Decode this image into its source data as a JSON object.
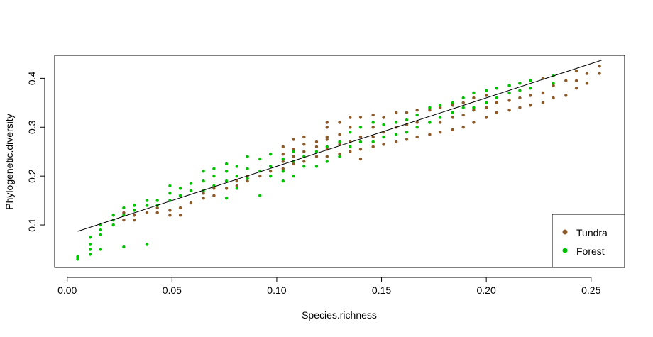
{
  "chart_data": {
    "type": "scatter",
    "title": "",
    "xlabel": "Species.richness",
    "ylabel": "Phylogenetic.diversity",
    "xlim": [
      -0.006,
      0.266
    ],
    "ylim": [
      0.013,
      0.447
    ],
    "xticks": [
      "0.00",
      "0.05",
      "0.10",
      "0.15",
      "0.20",
      "0.25"
    ],
    "xtick_values": [
      0.0,
      0.05,
      0.1,
      0.15,
      0.2,
      0.25
    ],
    "yticks": [
      "0.1",
      "0.2",
      "0.3",
      "0.4"
    ],
    "ytick_values": [
      0.1,
      0.2,
      0.3,
      0.4
    ],
    "grid": false,
    "legend_position": "bottom-right",
    "fit_line": {
      "x": [
        0.005,
        0.255
      ],
      "y": [
        0.087,
        0.437
      ],
      "color": "#000000"
    },
    "series": [
      {
        "name": "Tundra",
        "color": "#8B5A2B",
        "points": [
          [
            0.027,
            0.11
          ],
          [
            0.027,
            0.125
          ],
          [
            0.032,
            0.11
          ],
          [
            0.032,
            0.12
          ],
          [
            0.038,
            0.125
          ],
          [
            0.043,
            0.125
          ],
          [
            0.043,
            0.135
          ],
          [
            0.049,
            0.12
          ],
          [
            0.049,
            0.13
          ],
          [
            0.054,
            0.12
          ],
          [
            0.054,
            0.135
          ],
          [
            0.059,
            0.145
          ],
          [
            0.065,
            0.155
          ],
          [
            0.065,
            0.165
          ],
          [
            0.07,
            0.16
          ],
          [
            0.07,
            0.175
          ],
          [
            0.076,
            0.175
          ],
          [
            0.081,
            0.18
          ],
          [
            0.081,
            0.19
          ],
          [
            0.086,
            0.19
          ],
          [
            0.086,
            0.2
          ],
          [
            0.092,
            0.2
          ],
          [
            0.097,
            0.21
          ],
          [
            0.103,
            0.215
          ],
          [
            0.103,
            0.23
          ],
          [
            0.103,
            0.245
          ],
          [
            0.103,
            0.26
          ],
          [
            0.108,
            0.225
          ],
          [
            0.108,
            0.24
          ],
          [
            0.108,
            0.255
          ],
          [
            0.108,
            0.275
          ],
          [
            0.113,
            0.23
          ],
          [
            0.113,
            0.25
          ],
          [
            0.113,
            0.265
          ],
          [
            0.113,
            0.28
          ],
          [
            0.119,
            0.24
          ],
          [
            0.119,
            0.26
          ],
          [
            0.119,
            0.27
          ],
          [
            0.124,
            0.24
          ],
          [
            0.124,
            0.255
          ],
          [
            0.124,
            0.275
          ],
          [
            0.124,
            0.28
          ],
          [
            0.124,
            0.3
          ],
          [
            0.124,
            0.31
          ],
          [
            0.13,
            0.245
          ],
          [
            0.13,
            0.265
          ],
          [
            0.13,
            0.285
          ],
          [
            0.13,
            0.31
          ],
          [
            0.135,
            0.25
          ],
          [
            0.135,
            0.27
          ],
          [
            0.135,
            0.3
          ],
          [
            0.135,
            0.32
          ],
          [
            0.14,
            0.235
          ],
          [
            0.14,
            0.255
          ],
          [
            0.14,
            0.28
          ],
          [
            0.14,
            0.32
          ],
          [
            0.146,
            0.26
          ],
          [
            0.146,
            0.28
          ],
          [
            0.146,
            0.3
          ],
          [
            0.146,
            0.325
          ],
          [
            0.151,
            0.265
          ],
          [
            0.151,
            0.29
          ],
          [
            0.151,
            0.32
          ],
          [
            0.157,
            0.27
          ],
          [
            0.157,
            0.3
          ],
          [
            0.157,
            0.33
          ],
          [
            0.162,
            0.275
          ],
          [
            0.162,
            0.305
          ],
          [
            0.162,
            0.33
          ],
          [
            0.167,
            0.28
          ],
          [
            0.167,
            0.31
          ],
          [
            0.167,
            0.335
          ],
          [
            0.173,
            0.285
          ],
          [
            0.173,
            0.31
          ],
          [
            0.173,
            0.335
          ],
          [
            0.178,
            0.29
          ],
          [
            0.178,
            0.31
          ],
          [
            0.178,
            0.34
          ],
          [
            0.184,
            0.295
          ],
          [
            0.184,
            0.32
          ],
          [
            0.184,
            0.345
          ],
          [
            0.189,
            0.3
          ],
          [
            0.189,
            0.325
          ],
          [
            0.189,
            0.35
          ],
          [
            0.194,
            0.31
          ],
          [
            0.194,
            0.335
          ],
          [
            0.194,
            0.36
          ],
          [
            0.2,
            0.32
          ],
          [
            0.2,
            0.34
          ],
          [
            0.2,
            0.365
          ],
          [
            0.205,
            0.33
          ],
          [
            0.205,
            0.35
          ],
          [
            0.205,
            0.38
          ],
          [
            0.211,
            0.335
          ],
          [
            0.211,
            0.355
          ],
          [
            0.211,
            0.385
          ],
          [
            0.216,
            0.34
          ],
          [
            0.216,
            0.36
          ],
          [
            0.216,
            0.39
          ],
          [
            0.221,
            0.345
          ],
          [
            0.221,
            0.365
          ],
          [
            0.221,
            0.395
          ],
          [
            0.227,
            0.35
          ],
          [
            0.227,
            0.37
          ],
          [
            0.227,
            0.4
          ],
          [
            0.232,
            0.36
          ],
          [
            0.232,
            0.385
          ],
          [
            0.238,
            0.365
          ],
          [
            0.238,
            0.395
          ],
          [
            0.243,
            0.38
          ],
          [
            0.243,
            0.395
          ],
          [
            0.243,
            0.415
          ],
          [
            0.248,
            0.39
          ],
          [
            0.248,
            0.41
          ],
          [
            0.254,
            0.41
          ],
          [
            0.254,
            0.425
          ]
        ]
      },
      {
        "name": "Forest",
        "color": "#00C000",
        "points": [
          [
            0.005,
            0.03
          ],
          [
            0.005,
            0.035
          ],
          [
            0.011,
            0.04
          ],
          [
            0.011,
            0.05
          ],
          [
            0.011,
            0.06
          ],
          [
            0.011,
            0.075
          ],
          [
            0.016,
            0.05
          ],
          [
            0.016,
            0.08
          ],
          [
            0.016,
            0.09
          ],
          [
            0.016,
            0.1
          ],
          [
            0.022,
            0.1
          ],
          [
            0.022,
            0.11
          ],
          [
            0.022,
            0.12
          ],
          [
            0.027,
            0.055
          ],
          [
            0.027,
            0.12
          ],
          [
            0.027,
            0.135
          ],
          [
            0.032,
            0.13
          ],
          [
            0.032,
            0.14
          ],
          [
            0.038,
            0.06
          ],
          [
            0.038,
            0.14
          ],
          [
            0.038,
            0.15
          ],
          [
            0.043,
            0.14
          ],
          [
            0.043,
            0.15
          ],
          [
            0.049,
            0.15
          ],
          [
            0.049,
            0.165
          ],
          [
            0.049,
            0.18
          ],
          [
            0.054,
            0.16
          ],
          [
            0.054,
            0.175
          ],
          [
            0.059,
            0.17
          ],
          [
            0.059,
            0.185
          ],
          [
            0.065,
            0.17
          ],
          [
            0.065,
            0.19
          ],
          [
            0.065,
            0.21
          ],
          [
            0.07,
            0.18
          ],
          [
            0.07,
            0.2
          ],
          [
            0.07,
            0.215
          ],
          [
            0.076,
            0.155
          ],
          [
            0.076,
            0.19
          ],
          [
            0.076,
            0.21
          ],
          [
            0.076,
            0.225
          ],
          [
            0.081,
            0.175
          ],
          [
            0.081,
            0.2
          ],
          [
            0.081,
            0.22
          ],
          [
            0.086,
            0.195
          ],
          [
            0.086,
            0.215
          ],
          [
            0.086,
            0.24
          ],
          [
            0.092,
            0.16
          ],
          [
            0.092,
            0.21
          ],
          [
            0.092,
            0.235
          ],
          [
            0.097,
            0.2
          ],
          [
            0.097,
            0.22
          ],
          [
            0.097,
            0.245
          ],
          [
            0.103,
            0.19
          ],
          [
            0.103,
            0.21
          ],
          [
            0.103,
            0.235
          ],
          [
            0.108,
            0.2
          ],
          [
            0.108,
            0.23
          ],
          [
            0.108,
            0.25
          ],
          [
            0.113,
            0.22
          ],
          [
            0.113,
            0.24
          ],
          [
            0.119,
            0.22
          ],
          [
            0.119,
            0.25
          ],
          [
            0.124,
            0.23
          ],
          [
            0.124,
            0.26
          ],
          [
            0.13,
            0.24
          ],
          [
            0.13,
            0.27
          ],
          [
            0.135,
            0.26
          ],
          [
            0.135,
            0.29
          ],
          [
            0.14,
            0.27
          ],
          [
            0.14,
            0.3
          ],
          [
            0.146,
            0.27
          ],
          [
            0.146,
            0.31
          ],
          [
            0.151,
            0.28
          ],
          [
            0.151,
            0.305
          ],
          [
            0.157,
            0.285
          ],
          [
            0.157,
            0.31
          ],
          [
            0.162,
            0.29
          ],
          [
            0.162,
            0.315
          ],
          [
            0.167,
            0.3
          ],
          [
            0.167,
            0.325
          ],
          [
            0.173,
            0.31
          ],
          [
            0.173,
            0.34
          ],
          [
            0.178,
            0.32
          ],
          [
            0.178,
            0.345
          ],
          [
            0.184,
            0.33
          ],
          [
            0.184,
            0.35
          ],
          [
            0.189,
            0.34
          ],
          [
            0.189,
            0.36
          ],
          [
            0.194,
            0.34
          ],
          [
            0.194,
            0.37
          ],
          [
            0.2,
            0.35
          ],
          [
            0.2,
            0.375
          ],
          [
            0.205,
            0.36
          ],
          [
            0.205,
            0.38
          ],
          [
            0.211,
            0.37
          ],
          [
            0.211,
            0.385
          ],
          [
            0.216,
            0.375
          ],
          [
            0.216,
            0.39
          ],
          [
            0.221,
            0.38
          ],
          [
            0.221,
            0.395
          ],
          [
            0.232,
            0.39
          ],
          [
            0.232,
            0.405
          ]
        ]
      }
    ]
  }
}
